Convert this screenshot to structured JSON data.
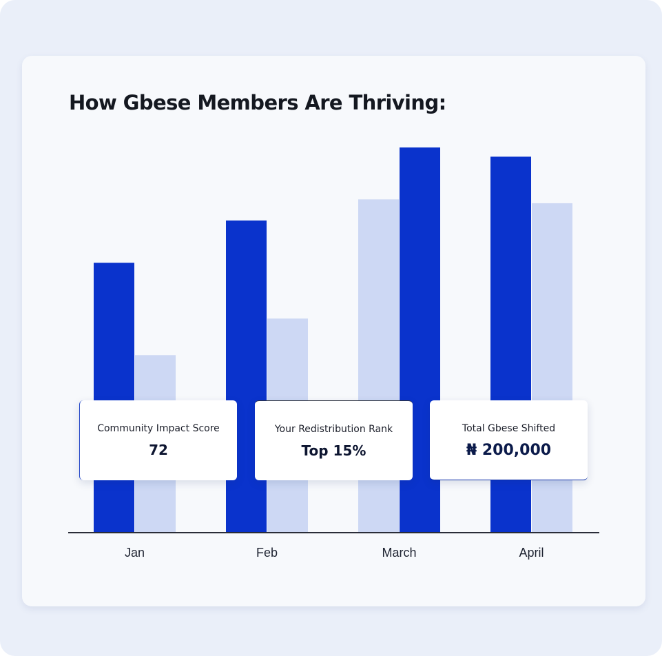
{
  "chart_data": {
    "type": "bar",
    "title": "How Gbese Members Are Thriving:",
    "categories": [
      "Jan",
      "Feb",
      "March",
      "April"
    ],
    "series": [
      {
        "values": [
          70,
          81,
          100,
          97.6
        ],
        "color": "#0a33cc"
      },
      {
        "values": [
          46,
          55.5,
          86.5,
          85.5
        ],
        "color": "#cdd8f4"
      }
    ],
    "series_order": [
      [
        0,
        1
      ],
      [
        0,
        1
      ],
      [
        1,
        0
      ],
      [
        0,
        1
      ]
    ],
    "ylim": [
      0,
      100
    ],
    "grid": false,
    "legend": "none"
  },
  "stats": [
    {
      "label": "Community Impact Score",
      "value": "72"
    },
    {
      "label": "Your Redistribution Rank",
      "value": "Top 15%"
    },
    {
      "label": "Total Gbese Shifted",
      "value": "₦ 200,000"
    }
  ],
  "colors": {
    "background": "#eaeff9",
    "card": "#f7f9fc",
    "accent": "#0a33cc",
    "accent_light": "#cdd8f4",
    "axis": "#2a2d38"
  }
}
